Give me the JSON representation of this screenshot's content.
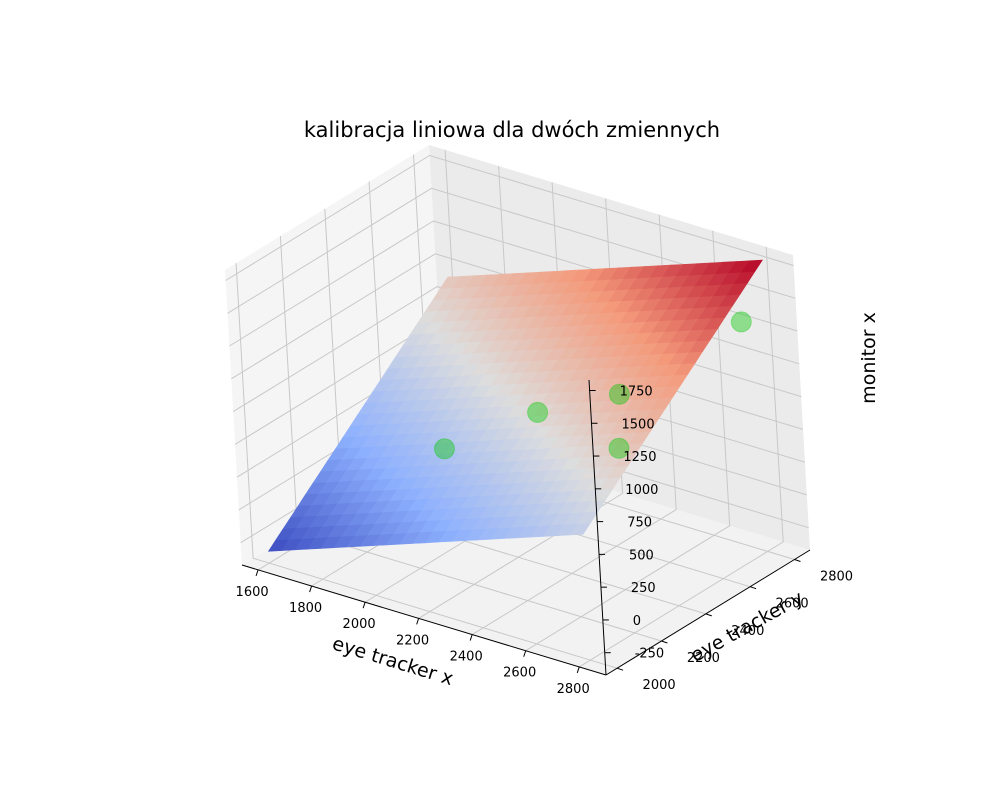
{
  "chart_data": {
    "type": "surface3d",
    "title": "kalibracja liniowa dla dwóch zmiennych",
    "xlabel": "eye tracker x",
    "ylabel": "eye tracker y",
    "zlabel": "monitor x",
    "xlim": [
      1540,
      2900
    ],
    "ylim": [
      1950,
      2870
    ],
    "zlim": [
      -420,
      1830
    ],
    "x_ticks": [
      1600,
      1800,
      2000,
      2200,
      2400,
      2600,
      2800
    ],
    "y_ticks": [
      2000,
      2200,
      2400,
      2600,
      2800
    ],
    "z_ticks": [
      -250,
      0,
      250,
      500,
      750,
      1000,
      1250,
      1500,
      1750
    ],
    "grid": true,
    "colormap": "coolwarm",
    "surface": {
      "corners": [
        {
          "x": 1600,
          "y": 2000,
          "z": -330
        },
        {
          "x": 2800,
          "y": 2000,
          "z": 540
        },
        {
          "x": 1600,
          "y": 2850,
          "z": 880
        },
        {
          "x": 2800,
          "y": 2850,
          "z": 1750
        }
      ]
    },
    "points": {
      "color": "#00c800",
      "values": [
        {
          "x": 1960,
          "y": 2380,
          "z": 280
        },
        {
          "x": 2200,
          "y": 2520,
          "z": 560
        },
        {
          "x": 2480,
          "y": 2560,
          "z": 830
        },
        {
          "x": 2650,
          "y": 2350,
          "z": 740
        },
        {
          "x": 2750,
          "y": 2800,
          "z": 1300
        }
      ]
    }
  }
}
